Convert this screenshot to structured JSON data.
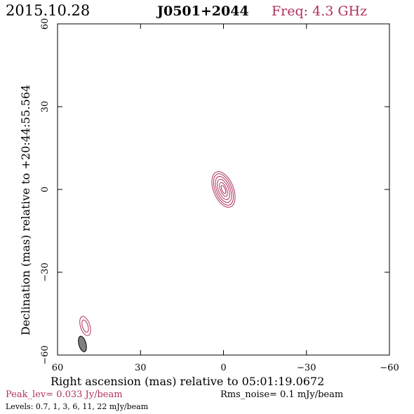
{
  "header": {
    "date": "2015.10.28",
    "source": "J0501+2044",
    "freq": "Freq: 4.3 GHz"
  },
  "axes": {
    "xlabel": "Right ascension (mas) relative to 05:01:19.0672",
    "ylabel": "Declination (mas) relative to +20:44:55.564",
    "xlim": [
      60,
      -60
    ],
    "ylim": [
      -60,
      60
    ],
    "xticks": [
      "60",
      "30",
      "0",
      "−30",
      "−60"
    ],
    "yticks": [
      "60",
      "30",
      "0",
      "−30",
      "−60"
    ]
  },
  "footer": {
    "peak": "Peak_lev=  0.033 Jy/beam",
    "rms": "Rms_noise=   0.1 mJy/beam",
    "levels": "Levels: 0.7,    1,    3,    6,   11,   22 mJy/beam"
  },
  "colors": {
    "contour": "#b03060",
    "peak_text": "#b03060",
    "freq_text": "#b03060",
    "beam_fill": "#808080"
  },
  "chart_data": {
    "type": "contour",
    "levels_mJy": [
      0.7,
      1,
      3,
      6,
      11,
      22
    ],
    "main_component": {
      "center": [
        0,
        0
      ],
      "contours": [
        {
          "rx": 3.6,
          "ry": 6.8,
          "pa": -22
        },
        {
          "rx": 3.0,
          "ry": 6.0,
          "pa": -22
        },
        {
          "rx": 2.4,
          "ry": 5.0,
          "pa": -22
        },
        {
          "rx": 1.8,
          "ry": 3.9,
          "pa": -22
        },
        {
          "rx": 1.1,
          "ry": 2.7,
          "pa": -22
        },
        {
          "rx": 0.6,
          "ry": 1.6,
          "pa": -22
        }
      ]
    },
    "secondary_component": {
      "center": [
        50,
        -49.5
      ],
      "contours": [
        {
          "rx": 1.7,
          "ry": 3.6,
          "pa": -18
        },
        {
          "rx": 1.0,
          "ry": 2.3,
          "pa": -18
        }
      ]
    },
    "beam": {
      "center": [
        51,
        -56
      ],
      "rx": 1.3,
      "ry": 2.9,
      "pa": -15
    }
  }
}
